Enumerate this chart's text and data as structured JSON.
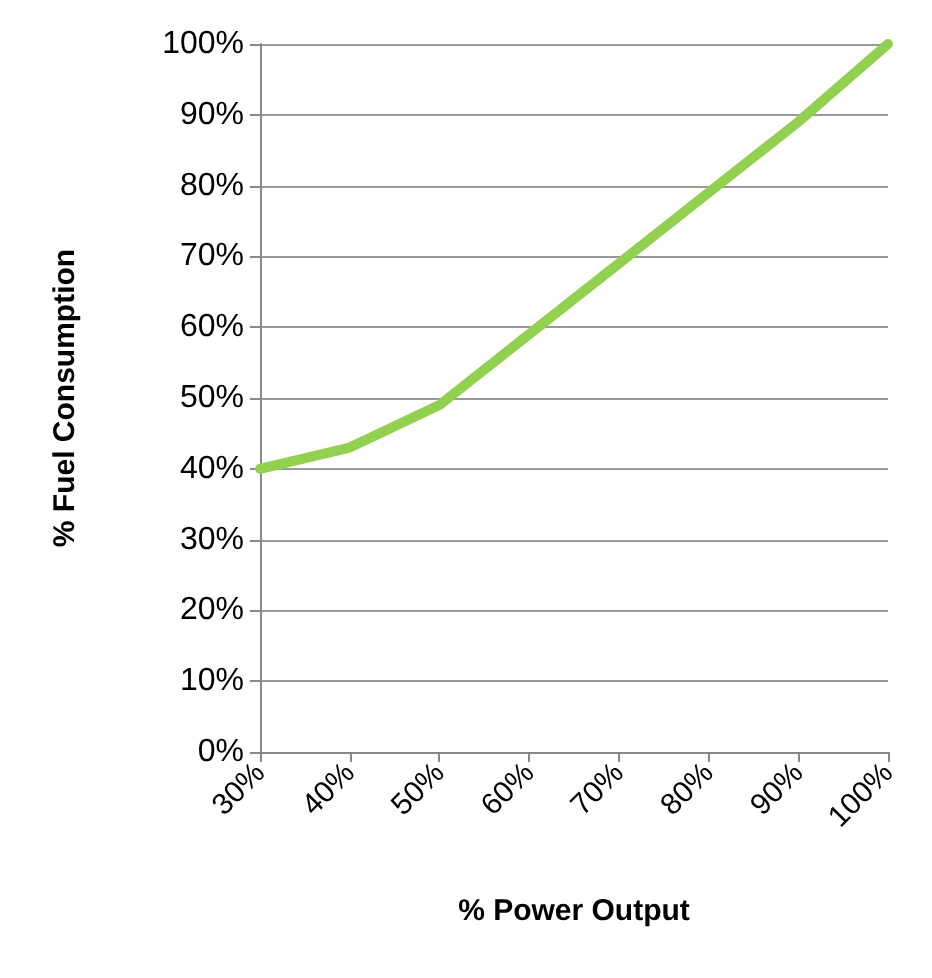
{
  "chart_data": {
    "type": "line",
    "xlabel": "% Power Output",
    "ylabel": "% Fuel Consumption",
    "x": [
      30,
      40,
      50,
      60,
      70,
      80,
      90,
      100
    ],
    "series": [
      {
        "color": "#92d050",
        "values": [
          40,
          43,
          49,
          59,
          69,
          79,
          89,
          100
        ]
      }
    ],
    "xlim": [
      30,
      100
    ],
    "xticks": [
      {
        "value": 30,
        "label": "30%"
      },
      {
        "value": 40,
        "label": "40%"
      },
      {
        "value": 50,
        "label": "50%"
      },
      {
        "value": 60,
        "label": "60%"
      },
      {
        "value": 70,
        "label": "70%"
      },
      {
        "value": 80,
        "label": "80%"
      },
      {
        "value": 90,
        "label": "90%"
      },
      {
        "value": 100,
        "label": "100%"
      }
    ],
    "ylim": [
      0,
      100
    ],
    "yticks": [
      {
        "value": 0,
        "label": "0%"
      },
      {
        "value": 10,
        "label": "10%"
      },
      {
        "value": 20,
        "label": "20%"
      },
      {
        "value": 30,
        "label": "30%"
      },
      {
        "value": 40,
        "label": "40%"
      },
      {
        "value": 50,
        "label": "50%"
      },
      {
        "value": 60,
        "label": "60%"
      },
      {
        "value": 70,
        "label": "70%"
      },
      {
        "value": 80,
        "label": "80%"
      },
      {
        "value": 90,
        "label": "90%"
      },
      {
        "value": 100,
        "label": "100%"
      }
    ],
    "grid": "y",
    "marker": "none",
    "line_style": "solid"
  }
}
